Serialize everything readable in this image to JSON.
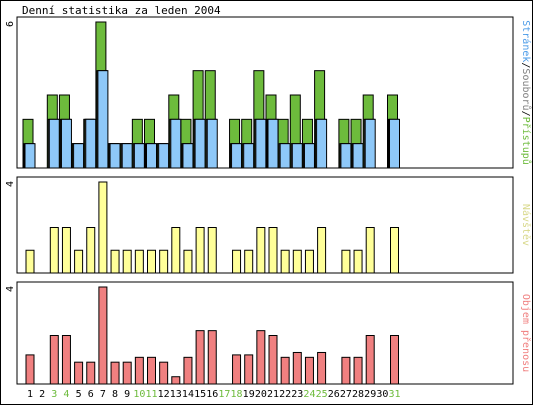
{
  "title": "Denní statistika za leden 2004",
  "colors": {
    "frame": "#000000",
    "access": "#6dbb3c",
    "files": "#d0d0d0",
    "pages": "#8ec8f8",
    "visits": "#ffff99",
    "traffic": "#f08080",
    "weekend_label": "#6dbb3c",
    "weekday_label": "#000000",
    "legend_pages": "#4a9be8",
    "legend_files": "#808080",
    "legend_visits": "#d8d88a",
    "legend_traffic": "#f08080"
  },
  "chart_data": [
    {
      "type": "bar",
      "panel": "top",
      "categories": [
        "1",
        "2",
        "3",
        "4",
        "5",
        "6",
        "7",
        "8",
        "9",
        "10",
        "11",
        "12",
        "13",
        "14",
        "15",
        "16",
        "17",
        "18",
        "19",
        "20",
        "21",
        "22",
        "23",
        "24",
        "25",
        "26",
        "27",
        "28",
        "29",
        "30",
        "31"
      ],
      "weekend_days": [
        "3",
        "4",
        "10",
        "11",
        "17",
        "18",
        "24",
        "25",
        "31"
      ],
      "ylim": [
        0,
        6
      ],
      "y_tick_label": "6",
      "legend": [
        {
          "label": "Stránek",
          "color_key": "legend_pages"
        },
        {
          "label": "/",
          "color_key": "weekday_label"
        },
        {
          "label": "Souborů",
          "color_key": "legend_files"
        },
        {
          "label": "/",
          "color_key": "weekday_label"
        },
        {
          "label": "Přístupů",
          "color_key": "access"
        }
      ],
      "series": [
        {
          "name": "Přístupů",
          "color_key": "access",
          "values": [
            2,
            0,
            3,
            3,
            1,
            2,
            6,
            1,
            1,
            2,
            2,
            1,
            3,
            2,
            4,
            4,
            0,
            2,
            2,
            4,
            3,
            2,
            3,
            2,
            4,
            0,
            2,
            2,
            3,
            0,
            3
          ]
        },
        {
          "name": "Souborů",
          "color_key": "files",
          "values": [
            1,
            0,
            2,
            2,
            1,
            2,
            4,
            1,
            1,
            1,
            1,
            1,
            2,
            1,
            2,
            2,
            0,
            1,
            1,
            2,
            2,
            1,
            1,
            1,
            2,
            0,
            1,
            1,
            2,
            0,
            2
          ]
        },
        {
          "name": "Stránek",
          "color_key": "pages",
          "values": [
            1,
            0,
            2,
            2,
            1,
            2,
            4,
            1,
            1,
            1,
            1,
            1,
            2,
            1,
            2,
            2,
            0,
            1,
            1,
            2,
            2,
            1,
            1,
            1,
            2,
            0,
            1,
            1,
            2,
            0,
            2
          ]
        }
      ]
    },
    {
      "type": "bar",
      "panel": "middle",
      "ylim": [
        0,
        4
      ],
      "y_tick_label": "4",
      "legend": [
        {
          "label": "Návštěv",
          "color_key": "legend_visits"
        }
      ],
      "series": [
        {
          "name": "Návštěv",
          "color_key": "visits",
          "values": [
            1,
            0,
            2,
            2,
            1,
            2,
            4,
            1,
            1,
            1,
            1,
            1,
            2,
            1,
            2,
            2,
            0,
            1,
            1,
            2,
            2,
            1,
            1,
            1,
            2,
            0,
            1,
            1,
            2,
            0,
            2
          ]
        }
      ]
    },
    {
      "type": "bar",
      "panel": "bottom",
      "ylim": [
        0,
        4
      ],
      "y_tick_label": "4",
      "legend": [
        {
          "label": "Objem přenosu",
          "color_key": "legend_traffic"
        }
      ],
      "series": [
        {
          "name": "Objem přenosu",
          "color_key": "traffic",
          "values": [
            1.2,
            0,
            2.0,
            2.0,
            0.9,
            0.9,
            4.0,
            0.9,
            0.9,
            1.1,
            1.1,
            0.9,
            0.3,
            1.1,
            2.2,
            2.2,
            0,
            1.2,
            1.2,
            2.2,
            2.0,
            1.1,
            1.3,
            1.1,
            1.3,
            0,
            1.1,
            1.1,
            2.0,
            0,
            2.0
          ]
        }
      ]
    }
  ]
}
